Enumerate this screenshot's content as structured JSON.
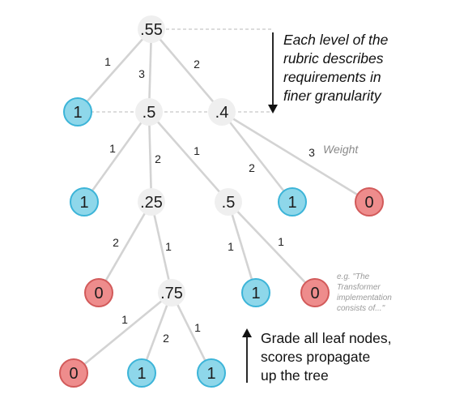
{
  "nodes": [
    {
      "id": "root",
      "label": ".55",
      "kind": "inner"
    },
    {
      "id": "n1",
      "label": "1",
      "kind": "pass"
    },
    {
      "id": "n2",
      "label": ".5",
      "kind": "inner"
    },
    {
      "id": "n3",
      "label": ".4",
      "kind": "inner"
    },
    {
      "id": "n4",
      "label": "1",
      "kind": "pass"
    },
    {
      "id": "n5",
      "label": ".25",
      "kind": "inner"
    },
    {
      "id": "n6",
      "label": ".5",
      "kind": "inner"
    },
    {
      "id": "n7",
      "label": "1",
      "kind": "pass"
    },
    {
      "id": "n8",
      "label": "0",
      "kind": "fail"
    },
    {
      "id": "n9",
      "label": "0",
      "kind": "fail"
    },
    {
      "id": "n10",
      "label": ".75",
      "kind": "inner"
    },
    {
      "id": "n11",
      "label": "1",
      "kind": "pass"
    },
    {
      "id": "n12",
      "label": "0",
      "kind": "fail"
    },
    {
      "id": "n13",
      "label": "0",
      "kind": "fail"
    },
    {
      "id": "n14",
      "label": "1",
      "kind": "pass"
    },
    {
      "id": "n15",
      "label": "1",
      "kind": "pass"
    }
  ],
  "edges": [
    {
      "from": "root",
      "to": "n1",
      "weight": "1"
    },
    {
      "from": "root",
      "to": "n2",
      "weight": "3"
    },
    {
      "from": "root",
      "to": "n3",
      "weight": "2"
    },
    {
      "from": "n2",
      "to": "n4",
      "weight": "1"
    },
    {
      "from": "n2",
      "to": "n5",
      "weight": "2"
    },
    {
      "from": "n2",
      "to": "n6",
      "weight": "1"
    },
    {
      "from": "n3",
      "to": "n7",
      "weight": "2"
    },
    {
      "from": "n3",
      "to": "n8",
      "weight": "3"
    },
    {
      "from": "n5",
      "to": "n9",
      "weight": "2"
    },
    {
      "from": "n5",
      "to": "n10",
      "weight": "1"
    },
    {
      "from": "n6",
      "to": "n11",
      "weight": "1"
    },
    {
      "from": "n6",
      "to": "n12",
      "weight": "1"
    },
    {
      "from": "n10",
      "to": "n13",
      "weight": "1"
    },
    {
      "from": "n10",
      "to": "n14",
      "weight": "2"
    },
    {
      "from": "n10",
      "to": "n15",
      "weight": "1"
    }
  ],
  "annotations": {
    "weight_label": "Weight",
    "granularity_note": [
      "Each level of the",
      "rubric describes",
      "requirements in",
      "finer granularity"
    ],
    "example_note": [
      "e.g. \"The",
      "Transformer",
      "implementation",
      "consists of...\""
    ],
    "propagate_note": [
      "Grade all leaf nodes,",
      "scores propagate",
      "up the tree"
    ]
  },
  "colors": {
    "pass_fill": "#8ed7ea",
    "pass_border": "#3cb4d8",
    "fail_fill": "#ee8c8c",
    "fail_border": "#d25a5a",
    "inner_fill": "#efefef",
    "edge": "#d3d3d3"
  }
}
